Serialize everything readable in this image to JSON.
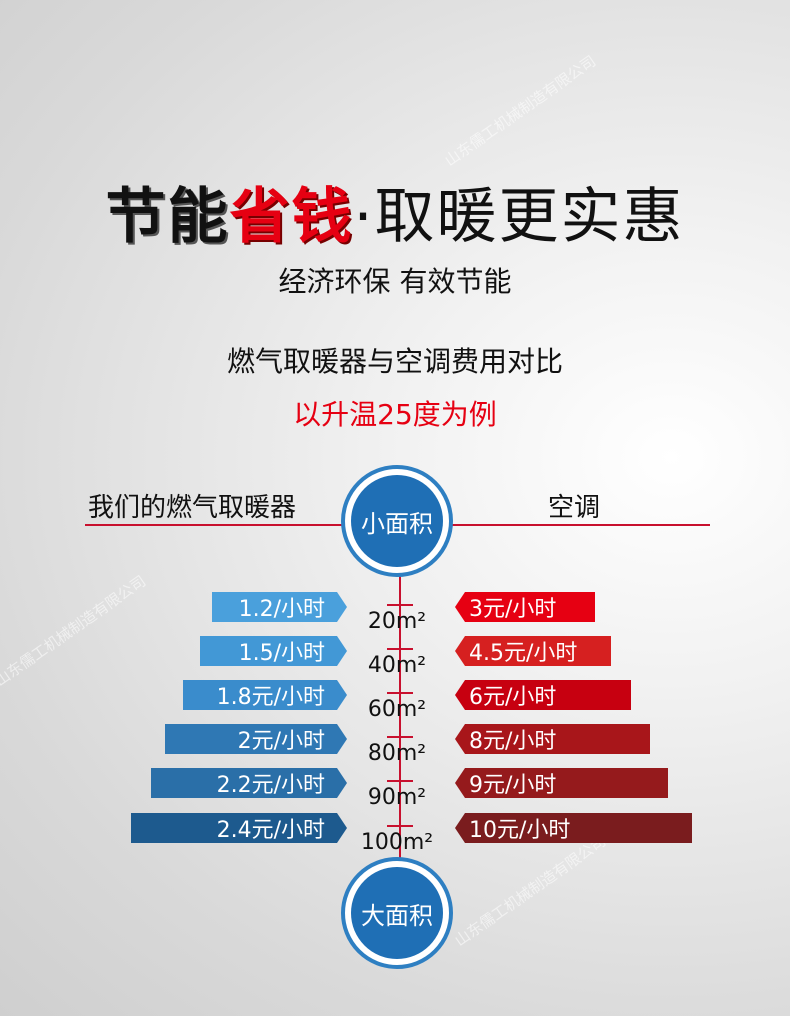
{
  "title": {
    "part1": "节能",
    "part2": "省钱",
    "part3": "·",
    "part4": "取暖更实惠"
  },
  "subtitle": "经济环保  有效节能",
  "comparison_title": "燃气取暖器与空调费用对比",
  "example": "以升温25度为例",
  "left_header": "我们的燃气取暖器",
  "right_header": "空调",
  "top_circle": "小面积",
  "bottom_circle": "大面积",
  "unit_suffix": "m²",
  "rows": [
    {
      "area": "20",
      "gas": "1.2/小时",
      "ac": "3元/小时"
    },
    {
      "area": "40",
      "gas": "1.5/小时",
      "ac": "4.5元/小时"
    },
    {
      "area": "60",
      "gas": "1.8元/小时",
      "ac": "6元/小时"
    },
    {
      "area": "80",
      "gas": "2元/小时",
      "ac": "8元/小时"
    },
    {
      "area": "90",
      "gas": "2.2元/小时",
      "ac": "9元/小时"
    },
    {
      "area": "100",
      "gas": "2.4元/小时",
      "ac": "10元/小时"
    }
  ],
  "watermark": "山东儒工机械制造有限公司",
  "colors": {
    "accent_red": "#e60012",
    "blue": "#1f6fb5"
  }
}
